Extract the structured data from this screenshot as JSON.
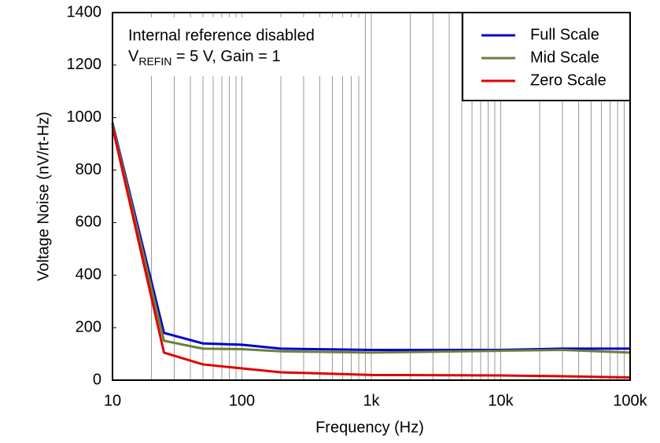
{
  "chart_data": {
    "type": "line",
    "xlabel": "Frequency (Hz)",
    "ylabel": "Voltage Noise (nV/rt-Hz)",
    "annotation": {
      "line1": "Internal reference disabled",
      "line2_main": "V",
      "line2_sub": "REFIN",
      "line2_rest": " = 5 V, Gain = 1"
    },
    "x": [
      10,
      25,
      50,
      100,
      200,
      1000,
      10000,
      30000,
      100000
    ],
    "xscale": "log",
    "xlim": [
      10,
      100000
    ],
    "xticks": [
      10,
      100,
      {
        "value": 1000,
        "label": "1k"
      },
      {
        "value": 10000,
        "label": "10k"
      },
      {
        "value": 100000,
        "label": "100k"
      }
    ],
    "ylim": [
      0,
      1400
    ],
    "yticks": [
      0,
      200,
      400,
      600,
      800,
      1000,
      1200,
      1400
    ],
    "grid": "x",
    "legend": "upper right",
    "series": [
      {
        "name": "Full Scale",
        "color": "#0000cc",
        "values": [
          980,
          180,
          140,
          135,
          120,
          115,
          115,
          120,
          120
        ]
      },
      {
        "name": "Mid Scale",
        "color": "#6b7f3a",
        "values": [
          975,
          150,
          120,
          118,
          110,
          105,
          112,
          115,
          105
        ]
      },
      {
        "name": "Zero Scale",
        "color": "#e00000",
        "values": [
          965,
          105,
          60,
          45,
          30,
          20,
          18,
          15,
          10
        ]
      }
    ]
  }
}
